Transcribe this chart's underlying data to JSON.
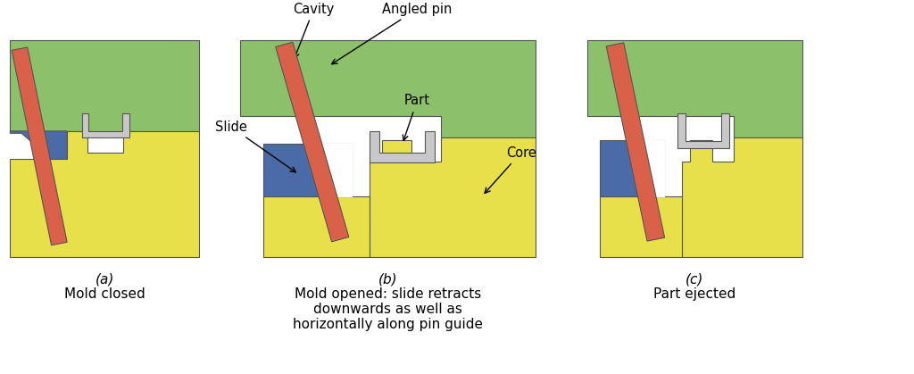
{
  "colors": {
    "green": "#8dc06a",
    "yellow": "#e8e04a",
    "blue": "#4a6ba8",
    "red_pin": "#d9614a",
    "white": "#ffffff",
    "light_gray": "#c8c8c8",
    "border": "#555555",
    "background": "#ffffff"
  },
  "labels": {
    "a": "(a)",
    "b": "(b)",
    "c": "(c)",
    "a_text": "Mold closed",
    "b_text": "Mold opened: slide retracts\ndownwards as well as\nhorizontally along pin guide",
    "c_text": "Part ejected",
    "cavity": "Cavity",
    "angled_pin": "Angled pin",
    "slide": "Slide",
    "part": "Part",
    "core": "Core"
  },
  "figsize": [
    10.24,
    4.19
  ],
  "dpi": 100
}
